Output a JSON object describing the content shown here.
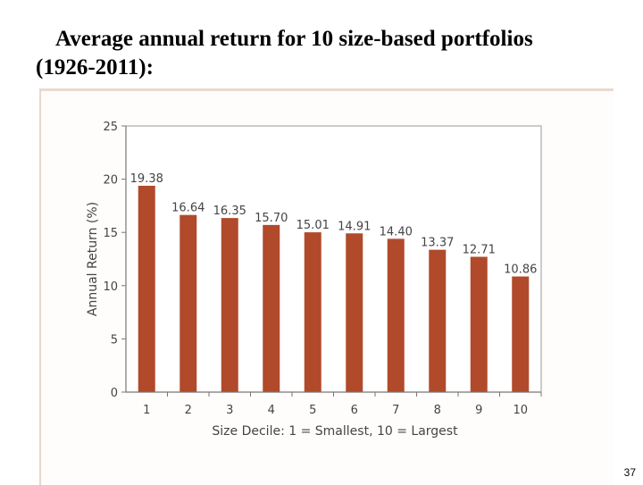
{
  "slide": {
    "title_line1": "Average annual return for 10 size-based portfolios",
    "title_line2": "(1926-2011):",
    "page_number": "37"
  },
  "colors": {
    "bar": "#b04a2b",
    "axis": "#777777",
    "gridline": "#9a9a9a",
    "plot_background": "#ffffff",
    "panel_background": "#fefdfb"
  },
  "chart_data": {
    "type": "bar",
    "categories": [
      "1",
      "2",
      "3",
      "4",
      "5",
      "6",
      "7",
      "8",
      "9",
      "10"
    ],
    "values": [
      19.38,
      16.64,
      16.35,
      15.7,
      15.01,
      14.91,
      14.4,
      13.37,
      12.71,
      10.86
    ],
    "data_labels": [
      "19.38",
      "16.64",
      "16.35",
      "15.70",
      "15.01",
      "14.91",
      "14.40",
      "13.37",
      "12.71",
      "10.86"
    ],
    "xlabel": "Size Decile: 1 = Smallest, 10 = Largest",
    "ylabel": "Annual Return (%)",
    "ylim": [
      0,
      25
    ],
    "yticks": [
      0,
      5,
      10,
      15,
      20,
      25
    ],
    "grid": false,
    "legend": "none"
  }
}
